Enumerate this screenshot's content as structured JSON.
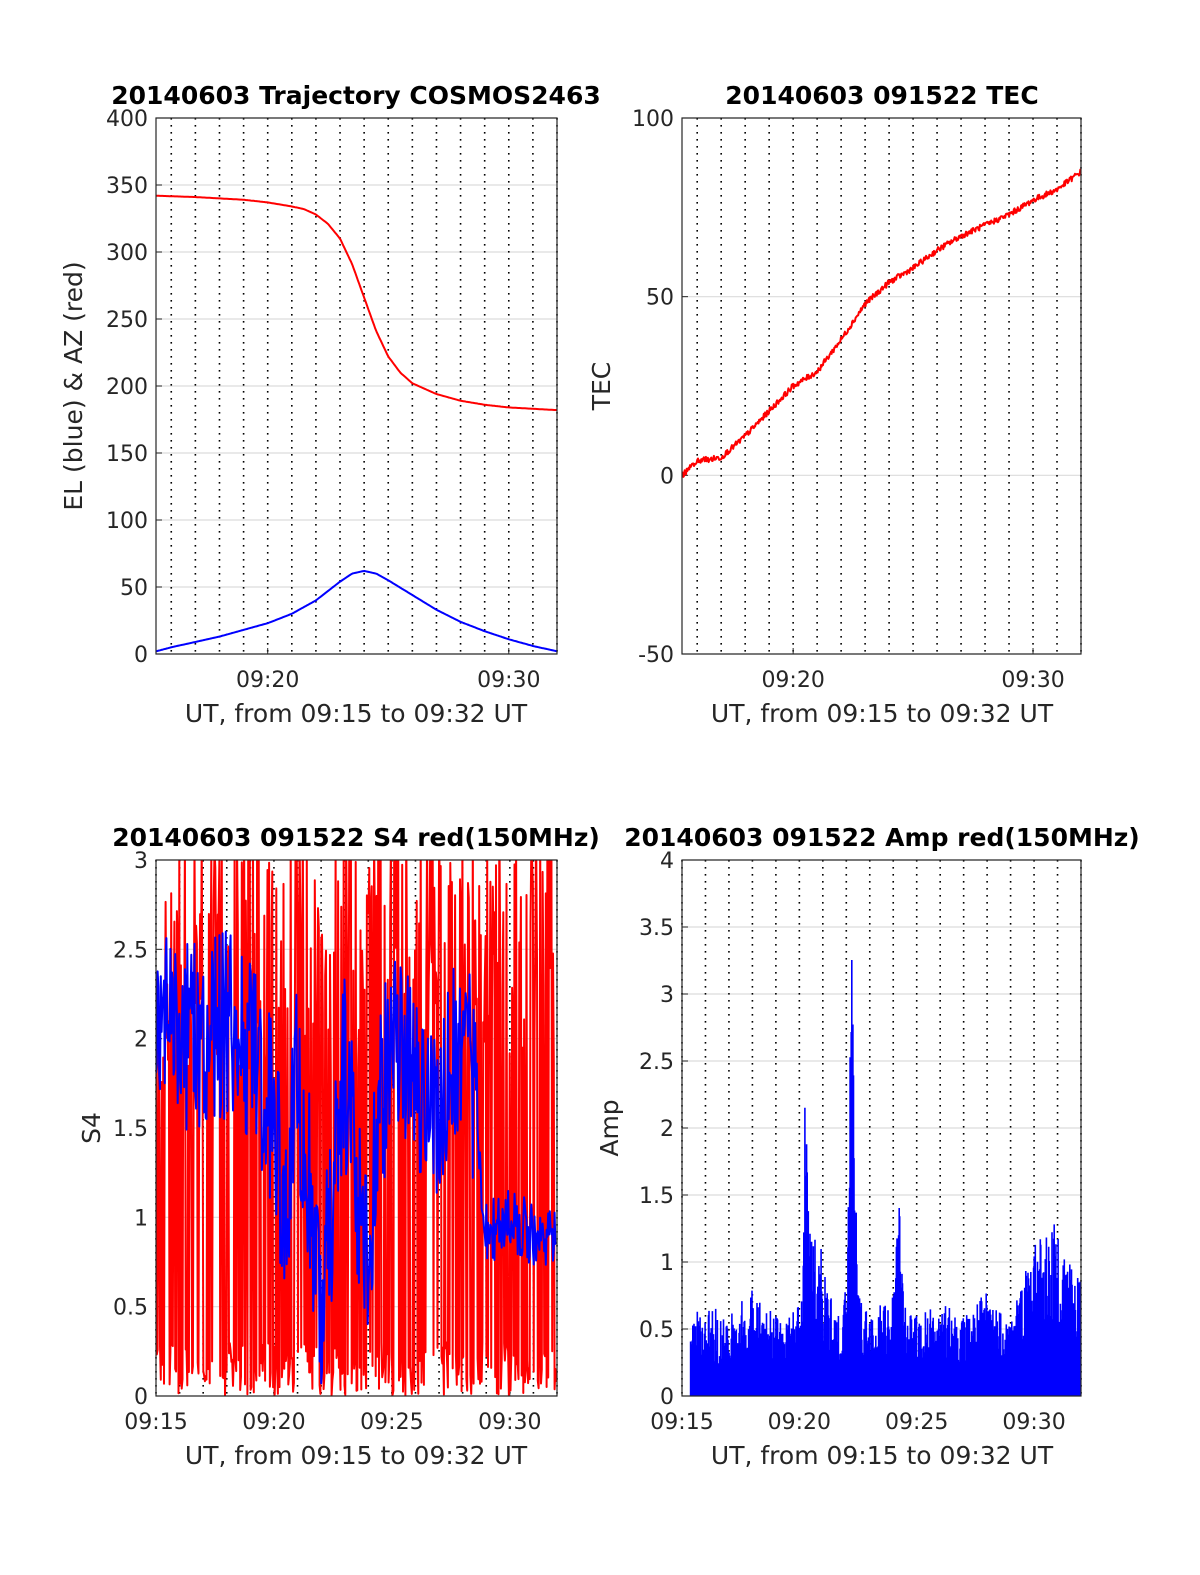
{
  "colors": {
    "red": "#ff0000",
    "blue": "#0000ff",
    "grid": "#dcdcdc",
    "dotted": "#000000"
  },
  "chart_data": [
    {
      "id": "trajectory",
      "type": "line",
      "title": "20140603 Trajectory COSMOS2463",
      "xlabel": "UT, from 09:15 to 09:32 UT",
      "ylabel": "EL (blue) & AZ (red)",
      "xlim": [
        "09:15:22",
        "09:32:00"
      ],
      "ylim": [
        0,
        400
      ],
      "xticks": [
        "09:20",
        "09:30"
      ],
      "yticks": [
        0,
        50,
        100,
        150,
        200,
        250,
        300,
        350,
        400
      ],
      "grid": true,
      "series": [
        {
          "color": "red",
          "x": [
            "09:15:22",
            "09:17:00",
            "09:18:00",
            "09:19:00",
            "09:20:00",
            "09:21:00",
            "09:21:30",
            "09:22:00",
            "09:22:30",
            "09:23:00",
            "09:23:30",
            "09:24:00",
            "09:24:30",
            "09:25:00",
            "09:25:30",
            "09:26:00",
            "09:27:00",
            "09:28:00",
            "09:29:00",
            "09:30:00",
            "09:31:00",
            "09:32:00"
          ],
          "y": [
            342,
            341,
            340,
            339,
            337,
            334,
            332,
            328,
            321,
            310,
            291,
            266,
            241,
            222,
            210,
            202,
            194,
            189,
            186,
            184,
            183,
            182
          ]
        },
        {
          "color": "blue",
          "x": [
            "09:15:22",
            "09:16:00",
            "09:17:00",
            "09:18:00",
            "09:19:00",
            "09:20:00",
            "09:21:00",
            "09:22:00",
            "09:22:30",
            "09:23:00",
            "09:23:30",
            "09:24:00",
            "09:24:30",
            "09:25:00",
            "09:26:00",
            "09:27:00",
            "09:28:00",
            "09:29:00",
            "09:30:00",
            "09:31:00",
            "09:32:00"
          ],
          "y": [
            2,
            5,
            9,
            13,
            18,
            23,
            30,
            40,
            47,
            54,
            60,
            62,
            60,
            55,
            44,
            33,
            24,
            17,
            11,
            6,
            2
          ]
        }
      ]
    },
    {
      "id": "tec",
      "type": "line",
      "title": "20140603 091522 TEC",
      "xlabel": "UT, from 09:15 to 09:32 UT",
      "ylabel": "TEC",
      "xlim": [
        "09:15:22",
        "09:32:00"
      ],
      "ylim": [
        -50,
        100
      ],
      "xticks": [
        "09:20",
        "09:30"
      ],
      "yticks": [
        -50,
        0,
        50,
        100
      ],
      "grid": true,
      "series": [
        {
          "color": "red",
          "x": [
            "09:15:22",
            "09:16:00",
            "09:17:00",
            "09:18:00",
            "09:19:00",
            "09:20:00",
            "09:21:00",
            "09:22:00",
            "09:23:00",
            "09:24:00",
            "09:25:00",
            "09:26:00",
            "09:27:00",
            "09:28:00",
            "09:29:00",
            "09:30:00",
            "09:31:00",
            "09:32:00"
          ],
          "y": [
            0,
            4,
            5,
            11,
            18,
            25,
            29,
            38,
            48,
            54,
            58,
            63,
            67,
            70,
            73,
            77,
            80,
            85
          ]
        }
      ]
    },
    {
      "id": "s4",
      "type": "line",
      "title": "20140603 091522 S4 red(150MHz)",
      "xlabel": "UT, from 09:15 to 09:32 UT",
      "ylabel": "S4",
      "xlim": [
        "09:15:00",
        "09:32:00"
      ],
      "ylim": [
        0,
        3
      ],
      "xticks": [
        "09:15",
        "09:20",
        "09:25",
        "09:30"
      ],
      "yticks": [
        0,
        0.5,
        1,
        1.5,
        2,
        2.5,
        3
      ],
      "grid": true,
      "series": [
        {
          "color": "red",
          "x": [
            "09:15:00",
            "09:16:00",
            "09:17:00",
            "09:18:00",
            "09:19:00",
            "09:20:00",
            "09:21:00",
            "09:22:00",
            "09:23:00",
            "09:24:00",
            "09:25:00",
            "09:26:00",
            "09:27:00",
            "09:28:00",
            "09:29:00",
            "09:30:00",
            "09:31:00",
            "09:32:00"
          ],
          "y": [
            2.3,
            3.0,
            2.9,
            3.0,
            3.0,
            2.9,
            3.0,
            2.8,
            3.0,
            2.9,
            3.0,
            3.0,
            2.9,
            3.0,
            3.0,
            3.0,
            3.0,
            3.0
          ]
        },
        {
          "color": "blue",
          "x": [
            "09:15:00",
            "09:16:00",
            "09:17:00",
            "09:18:00",
            "09:19:00",
            "09:20:00",
            "09:20:30",
            "09:21:00",
            "09:22:00",
            "09:23:00",
            "09:23:30",
            "09:24:00",
            "09:24:30",
            "09:25:00",
            "09:26:00",
            "09:27:00",
            "09:28:00",
            "09:28:30",
            "09:29:00",
            "09:30:00",
            "09:31:00",
            "09:32:00"
          ],
          "y": [
            2.3,
            2.0,
            2.0,
            2.1,
            1.9,
            1.6,
            0.9,
            1.8,
            0.5,
            1.8,
            1.2,
            0.8,
            1.6,
            2.0,
            1.8,
            1.6,
            2.1,
            1.7,
            0.9,
            1.0,
            0.9,
            0.9
          ]
        }
      ]
    },
    {
      "id": "amp",
      "type": "line",
      "title": "20140603 091522 Amp red(150MHz)",
      "xlabel": "UT, from 09:15 to 09:32 UT",
      "ylabel": "Amp",
      "xlim": [
        "09:15:00",
        "09:32:00"
      ],
      "ylim": [
        0,
        4
      ],
      "xticks": [
        "09:15",
        "09:20",
        "09:25",
        "09:30"
      ],
      "yticks": [
        0,
        0.5,
        1,
        1.5,
        2,
        2.5,
        3,
        3.5,
        4
      ],
      "grid": true,
      "series": [
        {
          "color": "blue",
          "x": [
            "09:15:22",
            "09:16:00",
            "09:17:00",
            "09:18:00",
            "09:19:00",
            "09:20:00",
            "09:20:15",
            "09:20:30",
            "09:21:00",
            "09:21:30",
            "09:22:00",
            "09:22:15",
            "09:22:30",
            "09:23:00",
            "09:24:00",
            "09:24:15",
            "09:24:30",
            "09:25:00",
            "09:26:00",
            "09:27:00",
            "09:28:00",
            "09:29:00",
            "09:30:00",
            "09:31:00",
            "09:32:00"
          ],
          "y": [
            0.7,
            0.7,
            0.6,
            0.8,
            0.6,
            0.7,
            2.25,
            1.3,
            1.1,
            0.6,
            0.8,
            3.65,
            0.8,
            0.6,
            0.8,
            1.55,
            0.7,
            0.6,
            0.7,
            0.6,
            0.8,
            0.6,
            1.2,
            1.3,
            0.9
          ]
        }
      ]
    }
  ]
}
